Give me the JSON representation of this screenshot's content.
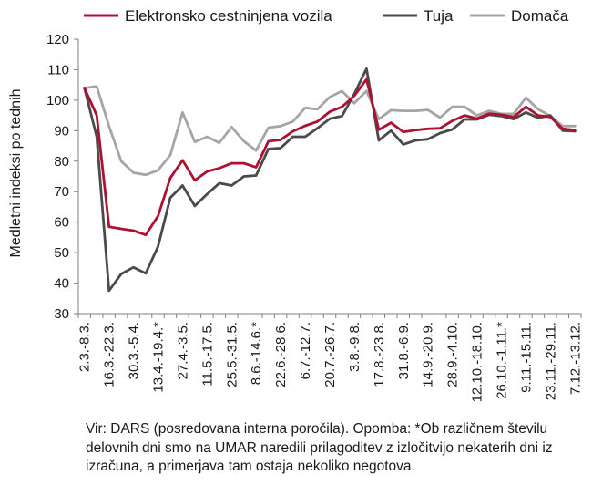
{
  "chart_data": {
    "type": "line",
    "ylabel": "Medletni indeksi po tednih",
    "xlabel": "",
    "ylim": [
      30,
      120
    ],
    "yticks": [
      30,
      40,
      50,
      60,
      70,
      80,
      90,
      100,
      110,
      120
    ],
    "grid": false,
    "legend_position": "top",
    "x": [
      "2.3.-8.3.",
      "",
      "16.3.-22.3.",
      "",
      "30.3.-5.4.",
      "",
      "13.4.-19.4.*",
      "",
      "27.4.-3.5.",
      "",
      "11.5.-17.5.",
      "",
      "25.5.-31.5.",
      "",
      "8.6.-14.6.*",
      "",
      "22.6.-28.6.",
      "",
      "6.7.-12.7.",
      "",
      "20.7.-26.7.",
      "",
      "3.8.-9.8.",
      "",
      "17.8.-23.8.",
      "",
      "31.8.-6.9.",
      "",
      "14.9.-20.9.",
      "",
      "28.9.-4.10.",
      "",
      "12.10.-18.10.",
      "",
      "26.10.-1.11.*",
      "",
      "9.11.-15.11.",
      "",
      "23.11.-29.11.",
      "",
      "7.12.-13.12."
    ],
    "series": [
      {
        "name": "Elektronsko cestninjena vozila",
        "color": "#b01030",
        "values": [
          104,
          95,
          58.5,
          57.8,
          57.2,
          55.8,
          62,
          74.5,
          80.3,
          73.7,
          76.6,
          77.7,
          79.3,
          79.3,
          78,
          86.5,
          87,
          89.8,
          91.6,
          93,
          96.2,
          97.8,
          101.4,
          106.8,
          90.3,
          92.6,
          89.6,
          90.2,
          90.6,
          90.8,
          93.2,
          95,
          94,
          95.6,
          95.2,
          94.5,
          97.8,
          95,
          94.5,
          90.6,
          90.2
        ]
      },
      {
        "name": "Tuja",
        "color": "#4a4a4a",
        "values": [
          104,
          88,
          37.5,
          43,
          45.2,
          43.2,
          52,
          68,
          72,
          65.3,
          69.2,
          72.8,
          72,
          75,
          75.3,
          84,
          84.3,
          88,
          88,
          90.8,
          93.9,
          94.8,
          102,
          110.3,
          86.8,
          90,
          85.5,
          86.8,
          87.2,
          89.2,
          90.4,
          93.7,
          93.7,
          95.2,
          94.8,
          93.8,
          96,
          94.2,
          95,
          90,
          89.8
        ]
      },
      {
        "name": "Domača",
        "color": "#a5a5a5",
        "values": [
          104,
          104.5,
          91.5,
          80,
          76.2,
          75.5,
          77,
          82,
          96,
          86.3,
          88,
          86,
          91.2,
          86.5,
          83.5,
          91,
          91.5,
          93,
          97.5,
          97,
          101,
          103,
          99,
          103,
          93.8,
          96.7,
          96.5,
          96.5,
          96.8,
          94.3,
          97.8,
          97.8,
          95,
          96.5,
          95.5,
          95.5,
          100.8,
          97,
          94.8,
          91.5,
          91.5
        ]
      }
    ]
  },
  "source_note": "Vir: DARS (posredovana interna poročila). Opomba: *Ob različnem številu delovnih dni smo na UMAR naredili prilagoditev z izločitvijo nekaterih dni iz izračuna, a primerjava tam ostaja nekoliko negotova."
}
